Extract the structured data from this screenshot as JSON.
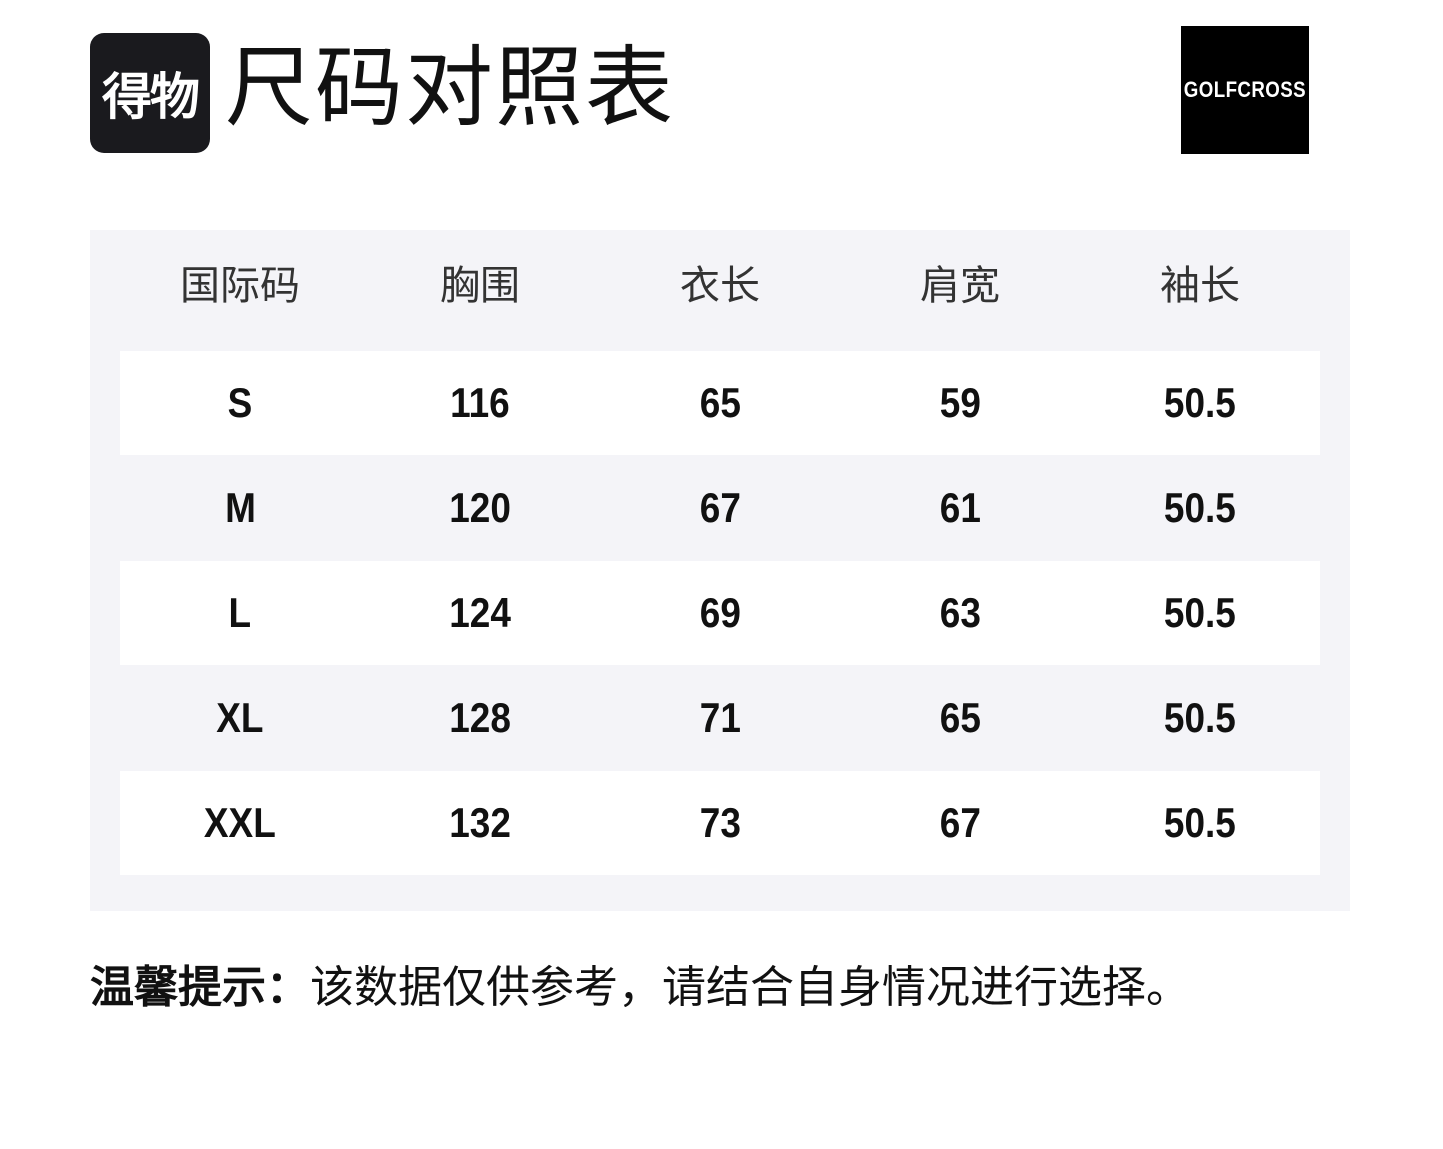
{
  "header": {
    "logo_text": "得物",
    "title": "尺码对照表",
    "brand_logo_text": "GOLFCROSS"
  },
  "table": {
    "columns": [
      "国际码",
      "胸围",
      "衣长",
      "肩宽",
      "袖长"
    ],
    "rows": [
      [
        "S",
        "116",
        "65",
        "59",
        "50.5"
      ],
      [
        "M",
        "120",
        "67",
        "61",
        "50.5"
      ],
      [
        "L",
        "124",
        "69",
        "63",
        "50.5"
      ],
      [
        "XL",
        "128",
        "71",
        "65",
        "50.5"
      ],
      [
        "XXL",
        "132",
        "73",
        "67",
        "50.5"
      ]
    ]
  },
  "note": {
    "label": "温馨提示：",
    "text": "该数据仅供参考，请结合自身情况进行选择。"
  }
}
